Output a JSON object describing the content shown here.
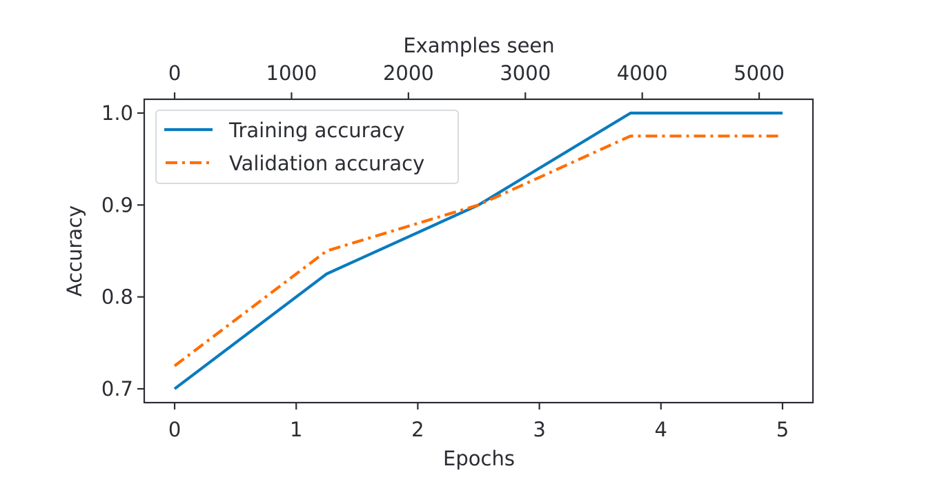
{
  "chart_data": {
    "type": "line",
    "title": "",
    "xlabel": "Epochs",
    "ylabel": "Accuracy",
    "secondary_xlabel": "Examples seen",
    "x": [
      0,
      1.25,
      2.5,
      3.75,
      5
    ],
    "series": [
      {
        "name": "Training accuracy",
        "values": [
          0.7,
          0.825,
          0.9,
          1.0,
          1.0
        ],
        "color": "#0a7bbf",
        "linestyle": "solid"
      },
      {
        "name": "Validation accuracy",
        "values": [
          0.725,
          0.85,
          0.9,
          0.975,
          0.975
        ],
        "color": "#ff6e00",
        "linestyle": "dashdot"
      }
    ],
    "xticks": [
      0,
      1,
      2,
      3,
      4,
      5
    ],
    "xtick_labels": [
      "0",
      "1",
      "2",
      "3",
      "4",
      "5"
    ],
    "yticks": [
      0.7,
      0.8,
      0.9,
      1.0
    ],
    "ytick_labels": [
      "0.7",
      "0.8",
      "0.9",
      "1.0"
    ],
    "secondary_xticks": [
      0,
      1000,
      2000,
      3000,
      4000,
      5000
    ],
    "secondary_xtick_labels": [
      "0",
      "1000",
      "2000",
      "3000",
      "4000",
      "5000"
    ],
    "secondary_xlim": [
      0,
      5200
    ],
    "xlim": [
      -0.25,
      5.25
    ],
    "ylim": [
      0.685,
      1.015
    ],
    "grid": false,
    "legend_position": "upper left"
  }
}
